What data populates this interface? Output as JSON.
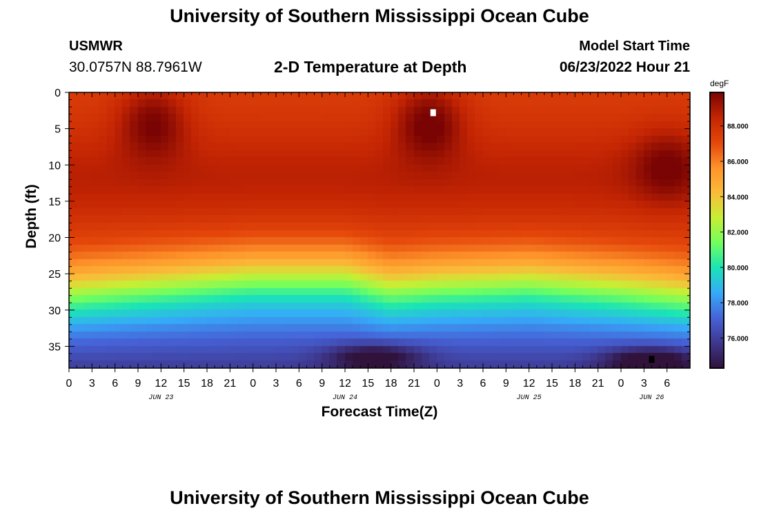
{
  "header": {
    "title": "University of Southern Mississippi Ocean Cube",
    "station": "USMWR",
    "coords": "30.0757N  88.7961W",
    "subtitle": "2-D Temperature at Depth",
    "model_start_label": "Model Start Time",
    "model_start_value": "06/23/2022 Hour 21"
  },
  "footer": {
    "title": "University of Southern Mississippi Ocean Cube"
  },
  "colors": {
    "palette": [
      "#30123b",
      "#3e378e",
      "#4662d7",
      "#36aaf9",
      "#1ae4b6",
      "#72fe5e",
      "#c7ef34",
      "#fabb39",
      "#fe922a",
      "#e4460a",
      "#c42503",
      "#7a0403"
    ]
  },
  "chart_data": {
    "type": "heatmap",
    "title": "2-D Temperature at Depth",
    "xlabel": "Forecast Time(Z)",
    "ylabel": "Depth (ft)",
    "xlim": [
      0,
      81
    ],
    "ylim": [
      0,
      38
    ],
    "x_ticks": [
      {
        "hour": 0,
        "label": "0"
      },
      {
        "hour": 3,
        "label": "3"
      },
      {
        "hour": 6,
        "label": "6"
      },
      {
        "hour": 9,
        "label": "9"
      },
      {
        "hour": 12,
        "label": "12"
      },
      {
        "hour": 15,
        "label": "15"
      },
      {
        "hour": 18,
        "label": "18"
      },
      {
        "hour": 21,
        "label": "21"
      },
      {
        "hour": 24,
        "label": "0"
      },
      {
        "hour": 27,
        "label": "3"
      },
      {
        "hour": 30,
        "label": "6"
      },
      {
        "hour": 33,
        "label": "9"
      },
      {
        "hour": 36,
        "label": "12"
      },
      {
        "hour": 39,
        "label": "15"
      },
      {
        "hour": 42,
        "label": "18"
      },
      {
        "hour": 45,
        "label": "21"
      },
      {
        "hour": 48,
        "label": "0"
      },
      {
        "hour": 51,
        "label": "3"
      },
      {
        "hour": 54,
        "label": "6"
      },
      {
        "hour": 57,
        "label": "9"
      },
      {
        "hour": 60,
        "label": "12"
      },
      {
        "hour": 63,
        "label": "15"
      },
      {
        "hour": 66,
        "label": "18"
      },
      {
        "hour": 69,
        "label": "21"
      },
      {
        "hour": 72,
        "label": "0"
      },
      {
        "hour": 75,
        "label": "3"
      },
      {
        "hour": 78,
        "label": "6"
      }
    ],
    "date_labels": [
      {
        "hour": 12,
        "label": "JUN 23"
      },
      {
        "hour": 36,
        "label": "JUN 24"
      },
      {
        "hour": 60,
        "label": "JUN 25"
      },
      {
        "hour": 76,
        "label": "JUN 26"
      }
    ],
    "y_ticks": [
      0,
      5,
      10,
      15,
      20,
      25,
      30,
      35
    ],
    "colorbar": {
      "unit": "degF",
      "min": 74.3,
      "max": 89.9,
      "ticks": [
        76,
        78,
        80,
        82,
        84,
        86,
        88
      ],
      "tick_labels": [
        "76.000",
        "78.000",
        "80.000",
        "82.000",
        "84.000",
        "86.000",
        "88.000"
      ]
    },
    "field_summary": {
      "surface_layer_degF": 87.5,
      "warm_cores": [
        {
          "hour": 11,
          "depth_ft": 4,
          "value_degF": 89.6
        },
        {
          "hour": 47,
          "depth_ft": 4,
          "value_degF": 89.8
        },
        {
          "hour": 78,
          "depth_ft": 10,
          "value_degF": 89.0
        }
      ],
      "cold_pools": [
        {
          "hour": 40,
          "depth_ft": 36.5,
          "value_degF": 74.8
        },
        {
          "hour": 76,
          "depth_ft": 37,
          "value_degF": 74.4
        }
      ],
      "thermocline_depth_ft_by_hour": [
        {
          "hour": 0,
          "depth": 27.5
        },
        {
          "hour": 12,
          "depth": 26.5
        },
        {
          "hour": 24,
          "depth": 25.5
        },
        {
          "hour": 36,
          "depth": 25.5
        },
        {
          "hour": 42,
          "depth": 27
        },
        {
          "hour": 48,
          "depth": 26.5
        },
        {
          "hour": 60,
          "depth": 26
        },
        {
          "hour": 72,
          "depth": 27
        },
        {
          "hour": 81,
          "depth": 28
        }
      ]
    },
    "markers": [
      {
        "hour": 47.5,
        "depth_ft": 2.8,
        "color": "#ffffff"
      },
      {
        "hour": 76,
        "depth_ft": 36.8,
        "color": "#000000"
      }
    ]
  }
}
